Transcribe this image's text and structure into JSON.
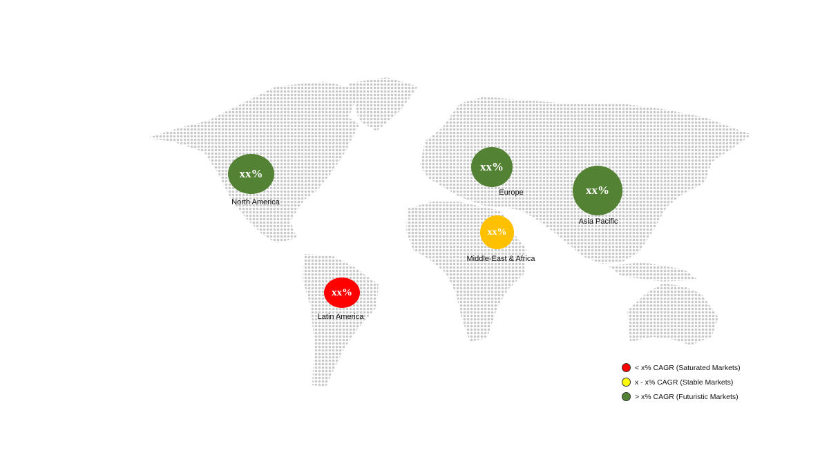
{
  "regions": [
    {
      "name": "North America",
      "value": "xx%",
      "color": "#548235",
      "category": "futuristic"
    },
    {
      "name": "Europe",
      "value": "xx%",
      "color": "#548235",
      "category": "futuristic"
    },
    {
      "name": "Asia Pacific",
      "value": "xx%",
      "color": "#548235",
      "category": "futuristic"
    },
    {
      "name": "Middle-East & Africa",
      "value": "xx%",
      "color": "#FFC000",
      "category": "stable"
    },
    {
      "name": "Latin America",
      "value": "xx%",
      "color": "#FF0000",
      "category": "saturated"
    }
  ],
  "legend": [
    {
      "label": "< x% CAGR (Saturated Markets)",
      "color": "#FF0000"
    },
    {
      "label": "x - x% CAGR (Stable Markets)",
      "color": "#FFFF00"
    },
    {
      "label": "> x% CAGR (Futuristic Markets)",
      "color": "#548235"
    }
  ],
  "map_dot_color": "#c8c8c8"
}
